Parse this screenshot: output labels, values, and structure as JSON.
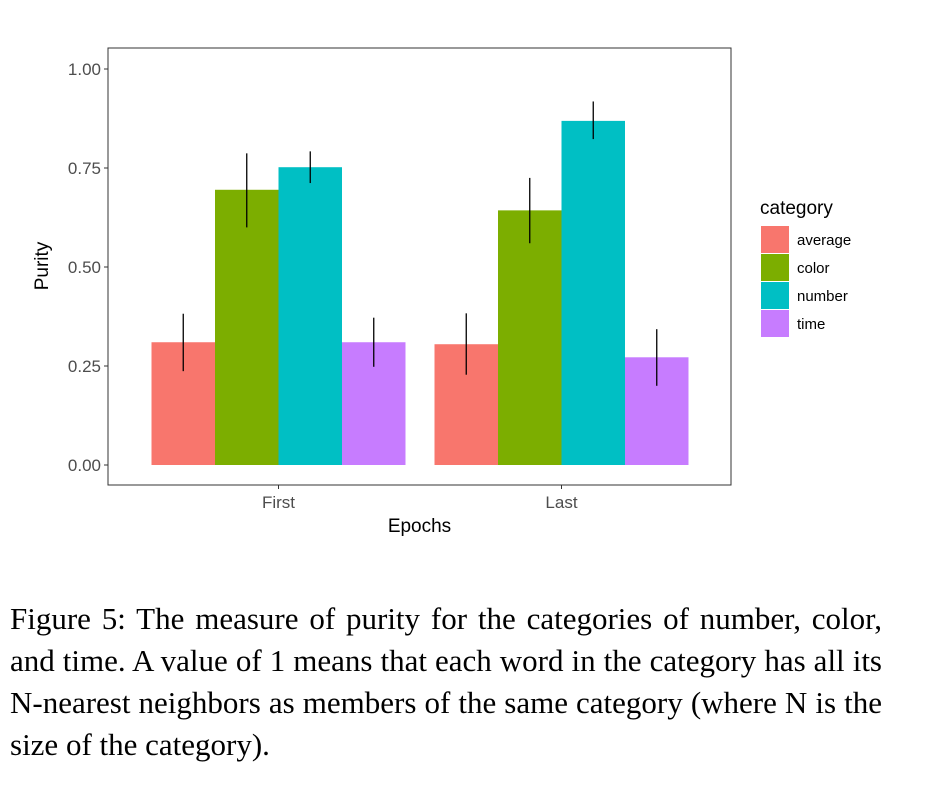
{
  "chart_data": {
    "type": "bar",
    "title": "",
    "xlabel": "Epochs",
    "ylabel": "Purity",
    "categories": [
      "First",
      "Last"
    ],
    "ylim": [
      0,
      1.0
    ],
    "yticks": [
      "0.00",
      "0.25",
      "0.50",
      "0.75",
      "1.00"
    ],
    "ytick_values": [
      0,
      0.25,
      0.5,
      0.75,
      1.0
    ],
    "legend_title": "category",
    "legend_position": "right",
    "grid": false,
    "series": [
      {
        "name": "average",
        "color": "#F8766D",
        "values": [
          0.31,
          0.305
        ],
        "err_low": [
          0.237,
          0.228
        ],
        "err_high": [
          0.382,
          0.383
        ]
      },
      {
        "name": "color",
        "color": "#7CAE00",
        "values": [
          0.695,
          0.643
        ],
        "err_low": [
          0.6,
          0.56
        ],
        "err_high": [
          0.787,
          0.725
        ]
      },
      {
        "name": "number",
        "color": "#00BFC4",
        "values": [
          0.752,
          0.869
        ],
        "err_low": [
          0.712,
          0.823
        ],
        "err_high": [
          0.792,
          0.918
        ]
      },
      {
        "name": "time",
        "color": "#C77CFF",
        "values": [
          0.31,
          0.272
        ],
        "err_low": [
          0.248,
          0.2
        ],
        "err_high": [
          0.372,
          0.343
        ]
      }
    ]
  },
  "caption": "Figure 5: The measure of purity for the categories of number, color, and time.  A value of 1 means that each word in the category has all its N-nearest neighbors as members of the same category (where N is the size of the category)."
}
